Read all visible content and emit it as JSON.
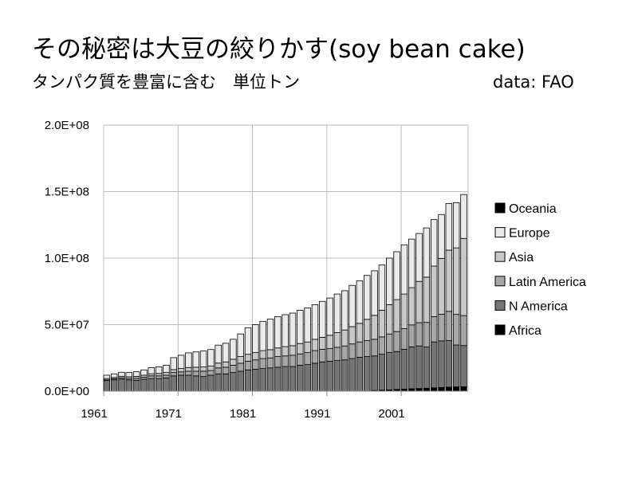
{
  "title": "その秘密は大豆の絞りかす(soy bean cake)",
  "subtitle": "タンパク質を豊富に含む　単位トン",
  "source": "data: FAO",
  "chart_data": {
    "type": "bar",
    "stacked": true,
    "xlim": [
      1961,
      2009
    ],
    "ylim": [
      0,
      200000000
    ],
    "x_tick_labels": [
      "1961",
      "1971",
      "1981",
      "1991",
      "2001"
    ],
    "y_tick_labels": [
      "0.0E+00",
      "5.0E+07",
      "1.0E+08",
      "1.5E+08",
      "2.0E+08"
    ],
    "y_ticks": [
      0,
      50000000,
      100000000,
      150000000,
      200000000
    ],
    "grid": true,
    "legend": "right",
    "categories": [
      1961,
      1962,
      1963,
      1964,
      1965,
      1966,
      1967,
      1968,
      1969,
      1970,
      1971,
      1972,
      1973,
      1974,
      1975,
      1976,
      1977,
      1978,
      1979,
      1980,
      1981,
      1982,
      1983,
      1984,
      1985,
      1986,
      1987,
      1988,
      1989,
      1990,
      1991,
      1992,
      1993,
      1994,
      1995,
      1996,
      1997,
      1998,
      1999,
      2000,
      2001,
      2002,
      2003,
      2004,
      2005,
      2006,
      2007,
      2008,
      2009
    ],
    "series": [
      {
        "name": "Africa",
        "color": "#000000",
        "values": [
          0,
          0,
          0,
          0,
          0,
          0,
          0,
          0,
          0,
          0,
          0,
          0,
          0,
          0,
          0,
          0,
          0,
          0,
          0,
          0,
          0,
          0,
          0,
          0,
          0,
          0,
          0,
          0,
          0,
          0,
          0,
          0,
          0,
          0,
          0,
          0,
          500000,
          800000,
          1000000,
          1300000,
          1500000,
          1800000,
          2000000,
          2200000,
          2500000,
          2800000,
          3000000,
          3200000,
          3300000
        ]
      },
      {
        "name": "N America",
        "color": "#757575",
        "values": [
          8000000,
          8500000,
          9000000,
          8500000,
          8200000,
          9000000,
          9500000,
          9500000,
          10000000,
          11500000,
          12000000,
          12000000,
          11500000,
          11000000,
          12000000,
          13000000,
          13000000,
          14000000,
          15000000,
          16000000,
          16500000,
          17000000,
          17500000,
          18000000,
          18500000,
          18500000,
          19500000,
          20000000,
          21000000,
          22000000,
          22500000,
          23000000,
          23500000,
          24500000,
          25500000,
          26000000,
          26000000,
          27000000,
          28000000,
          28500000,
          30000000,
          31500000,
          32000000,
          31000000,
          34500000,
          35000000,
          35000000,
          31500000,
          31000000
        ]
      },
      {
        "name": "Latin America",
        "color": "#a6a6a6",
        "values": [
          500000,
          800000,
          1000000,
          1000000,
          1500000,
          1500000,
          2000000,
          2000000,
          2000000,
          2500000,
          2500000,
          3000000,
          3500000,
          4000000,
          3500000,
          4500000,
          5000000,
          5500000,
          6000000,
          6500000,
          7000000,
          7500000,
          7500000,
          8000000,
          8000000,
          8500000,
          8500000,
          9000000,
          9500000,
          9500000,
          9500000,
          10000000,
          10500000,
          11000000,
          11500000,
          12000000,
          12500000,
          13000000,
          14000000,
          15000000,
          15500000,
          16500000,
          17500000,
          18500000,
          19000000,
          20000000,
          22000000,
          23000000,
          22500000
        ]
      },
      {
        "name": "Asia",
        "color": "#c8c8c8",
        "values": [
          1000000,
          1000000,
          1200000,
          1300000,
          1400000,
          1500000,
          1600000,
          1800000,
          2000000,
          2200000,
          2500000,
          2800000,
          3000000,
          3200000,
          3300000,
          3600000,
          4000000,
          4500000,
          5000000,
          5200000,
          5500000,
          6000000,
          6200000,
          6500000,
          7000000,
          7200000,
          7800000,
          8000000,
          8500000,
          9000000,
          10000000,
          11000000,
          12000000,
          13000000,
          14000000,
          16000000,
          18000000,
          20000000,
          22000000,
          24000000,
          26000000,
          28000000,
          31000000,
          34000000,
          38000000,
          42000000,
          46000000,
          50000000,
          58000000
        ]
      },
      {
        "name": "Europe",
        "color": "#eaeaea",
        "values": [
          2500000,
          2700000,
          3000000,
          3200000,
          3500000,
          4000000,
          4500000,
          5000000,
          5500000,
          9000000,
          10000000,
          11000000,
          11500000,
          12000000,
          12500000,
          13500000,
          14000000,
          15000000,
          17000000,
          20000000,
          21000000,
          22000000,
          23000000,
          23500000,
          24000000,
          24500000,
          25000000,
          25500000,
          26000000,
          27000000,
          28000000,
          29000000,
          29500000,
          31000000,
          32000000,
          33000000,
          33500000,
          34000000,
          35000000,
          36000000,
          37000000,
          36500000,
          36000000,
          37000000,
          35000000,
          33000000,
          35000000,
          34000000,
          33000000
        ]
      },
      {
        "name": "Oceania",
        "color": "#000000",
        "values": [
          0,
          0,
          0,
          0,
          0,
          0,
          0,
          0,
          0,
          0,
          0,
          0,
          0,
          0,
          0,
          0,
          0,
          0,
          0,
          0,
          0,
          0,
          0,
          0,
          0,
          0,
          0,
          0,
          0,
          0,
          0,
          0,
          0,
          0,
          0,
          0,
          0,
          0,
          0,
          0,
          0,
          0,
          0,
          0,
          0,
          0,
          0,
          0,
          0
        ]
      }
    ]
  }
}
